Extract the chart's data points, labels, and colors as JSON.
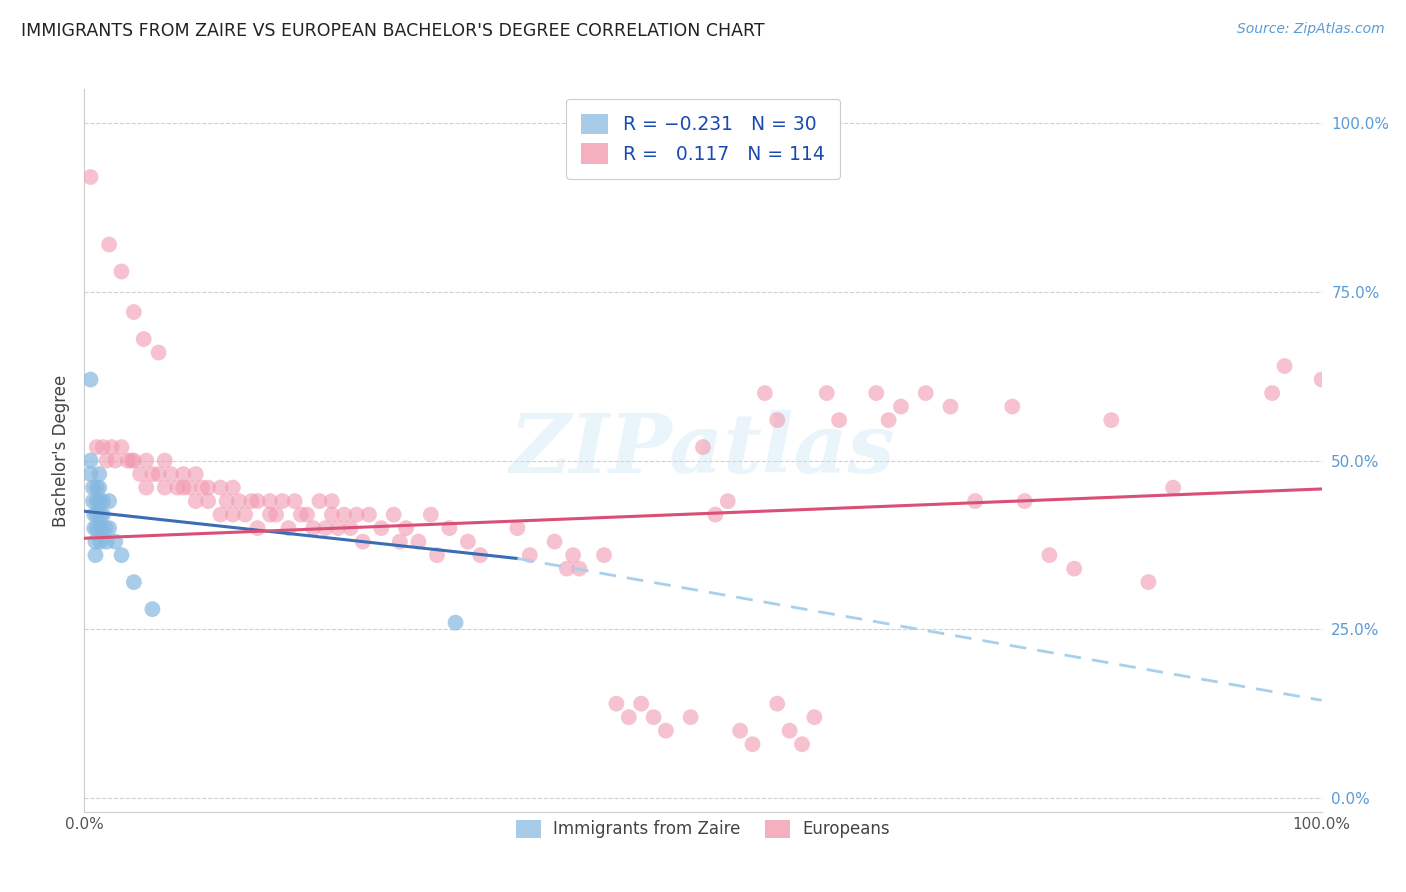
{
  "title": "IMMIGRANTS FROM ZAIRE VS EUROPEAN BACHELOR'S DEGREE CORRELATION CHART",
  "source": "Source: ZipAtlas.com",
  "ylabel": "Bachelor's Degree",
  "ytick_labels": [
    "0.0%",
    "25.0%",
    "50.0%",
    "75.0%",
    "100.0%"
  ],
  "ytick_positions": [
    0.0,
    0.25,
    0.5,
    0.75,
    1.0
  ],
  "xlim": [
    0.0,
    1.0
  ],
  "ylim": [
    -0.02,
    1.05
  ],
  "watermark": "ZIPatlas",
  "blue_color": "#85b8e0",
  "pink_color": "#f09ab0",
  "blue_line_color": "#3a6db5",
  "pink_line_color": "#d94f75",
  "blue_dash_color": "#a8d0ea",
  "blue_scatter": [
    [
      0.005,
      0.62
    ],
    [
      0.005,
      0.5
    ],
    [
      0.005,
      0.48
    ],
    [
      0.007,
      0.46
    ],
    [
      0.007,
      0.44
    ],
    [
      0.008,
      0.42
    ],
    [
      0.008,
      0.4
    ],
    [
      0.009,
      0.38
    ],
    [
      0.009,
      0.36
    ],
    [
      0.01,
      0.46
    ],
    [
      0.01,
      0.44
    ],
    [
      0.01,
      0.42
    ],
    [
      0.01,
      0.4
    ],
    [
      0.012,
      0.48
    ],
    [
      0.012,
      0.46
    ],
    [
      0.012,
      0.44
    ],
    [
      0.013,
      0.42
    ],
    [
      0.013,
      0.4
    ],
    [
      0.013,
      0.38
    ],
    [
      0.015,
      0.44
    ],
    [
      0.015,
      0.42
    ],
    [
      0.017,
      0.4
    ],
    [
      0.018,
      0.38
    ],
    [
      0.02,
      0.44
    ],
    [
      0.02,
      0.4
    ],
    [
      0.025,
      0.38
    ],
    [
      0.03,
      0.36
    ],
    [
      0.04,
      0.32
    ],
    [
      0.055,
      0.28
    ],
    [
      0.3,
      0.26
    ]
  ],
  "pink_scatter": [
    [
      0.005,
      0.92
    ],
    [
      0.02,
      0.82
    ],
    [
      0.03,
      0.78
    ],
    [
      0.04,
      0.72
    ],
    [
      0.048,
      0.68
    ],
    [
      0.06,
      0.66
    ],
    [
      0.01,
      0.52
    ],
    [
      0.015,
      0.52
    ],
    [
      0.018,
      0.5
    ],
    [
      0.022,
      0.52
    ],
    [
      0.025,
      0.5
    ],
    [
      0.03,
      0.52
    ],
    [
      0.035,
      0.5
    ],
    [
      0.038,
      0.5
    ],
    [
      0.04,
      0.5
    ],
    [
      0.045,
      0.48
    ],
    [
      0.05,
      0.5
    ],
    [
      0.05,
      0.46
    ],
    [
      0.055,
      0.48
    ],
    [
      0.06,
      0.48
    ],
    [
      0.065,
      0.5
    ],
    [
      0.065,
      0.46
    ],
    [
      0.07,
      0.48
    ],
    [
      0.075,
      0.46
    ],
    [
      0.08,
      0.48
    ],
    [
      0.08,
      0.46
    ],
    [
      0.085,
      0.46
    ],
    [
      0.09,
      0.48
    ],
    [
      0.09,
      0.44
    ],
    [
      0.095,
      0.46
    ],
    [
      0.1,
      0.46
    ],
    [
      0.1,
      0.44
    ],
    [
      0.11,
      0.46
    ],
    [
      0.11,
      0.42
    ],
    [
      0.115,
      0.44
    ],
    [
      0.12,
      0.46
    ],
    [
      0.12,
      0.42
    ],
    [
      0.125,
      0.44
    ],
    [
      0.13,
      0.42
    ],
    [
      0.135,
      0.44
    ],
    [
      0.14,
      0.44
    ],
    [
      0.14,
      0.4
    ],
    [
      0.15,
      0.44
    ],
    [
      0.15,
      0.42
    ],
    [
      0.155,
      0.42
    ],
    [
      0.16,
      0.44
    ],
    [
      0.165,
      0.4
    ],
    [
      0.17,
      0.44
    ],
    [
      0.175,
      0.42
    ],
    [
      0.18,
      0.42
    ],
    [
      0.185,
      0.4
    ],
    [
      0.19,
      0.44
    ],
    [
      0.195,
      0.4
    ],
    [
      0.2,
      0.44
    ],
    [
      0.2,
      0.42
    ],
    [
      0.205,
      0.4
    ],
    [
      0.21,
      0.42
    ],
    [
      0.215,
      0.4
    ],
    [
      0.22,
      0.42
    ],
    [
      0.225,
      0.38
    ],
    [
      0.23,
      0.42
    ],
    [
      0.24,
      0.4
    ],
    [
      0.25,
      0.42
    ],
    [
      0.255,
      0.38
    ],
    [
      0.26,
      0.4
    ],
    [
      0.27,
      0.38
    ],
    [
      0.28,
      0.42
    ],
    [
      0.285,
      0.36
    ],
    [
      0.295,
      0.4
    ],
    [
      0.31,
      0.38
    ],
    [
      0.32,
      0.36
    ],
    [
      0.35,
      0.4
    ],
    [
      0.36,
      0.36
    ],
    [
      0.38,
      0.38
    ],
    [
      0.39,
      0.34
    ],
    [
      0.395,
      0.36
    ],
    [
      0.4,
      0.34
    ],
    [
      0.42,
      0.36
    ],
    [
      0.43,
      0.14
    ],
    [
      0.44,
      0.12
    ],
    [
      0.45,
      0.14
    ],
    [
      0.46,
      0.12
    ],
    [
      0.47,
      0.1
    ],
    [
      0.49,
      0.12
    ],
    [
      0.5,
      0.52
    ],
    [
      0.51,
      0.42
    ],
    [
      0.52,
      0.44
    ],
    [
      0.53,
      0.1
    ],
    [
      0.54,
      0.08
    ],
    [
      0.56,
      0.14
    ],
    [
      0.57,
      0.1
    ],
    [
      0.58,
      0.08
    ],
    [
      0.59,
      0.12
    ],
    [
      0.55,
      0.6
    ],
    [
      0.56,
      0.56
    ],
    [
      0.6,
      0.6
    ],
    [
      0.61,
      0.56
    ],
    [
      0.64,
      0.6
    ],
    [
      0.65,
      0.56
    ],
    [
      0.66,
      0.58
    ],
    [
      0.68,
      0.6
    ],
    [
      0.7,
      0.58
    ],
    [
      0.72,
      0.44
    ],
    [
      0.75,
      0.58
    ],
    [
      0.76,
      0.44
    ],
    [
      0.78,
      0.36
    ],
    [
      0.8,
      0.34
    ],
    [
      0.83,
      0.56
    ],
    [
      0.86,
      0.32
    ],
    [
      0.88,
      0.46
    ],
    [
      0.96,
      0.6
    ],
    [
      0.97,
      0.64
    ],
    [
      1.0,
      0.62
    ]
  ],
  "blue_line_x0": 0.0,
  "blue_line_y0": 0.425,
  "blue_line_x1": 0.35,
  "blue_line_y1": 0.355,
  "blue_line_x2": 1.0,
  "blue_line_y2": 0.145,
  "pink_line_x0": 0.0,
  "pink_line_y0": 0.385,
  "pink_line_x1": 1.0,
  "pink_line_y1": 0.458
}
